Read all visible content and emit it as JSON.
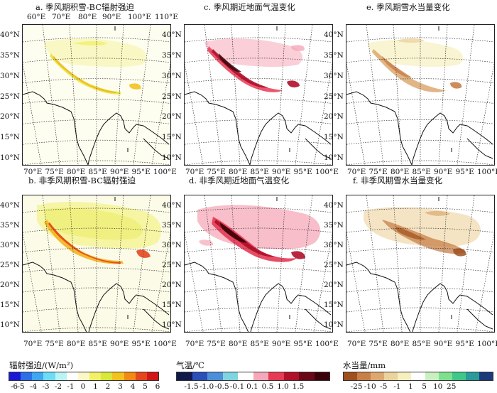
{
  "panels": [
    {
      "id": "a",
      "title": "a. 季风期积雪-BC辐射强迫",
      "type": "forcing",
      "season": "monsoon"
    },
    {
      "id": "b",
      "title": "b. 非季风期积雪-BC辐射强迫",
      "type": "forcing",
      "season": "non-monsoon"
    },
    {
      "id": "c",
      "title": "c. 季风期近地面气温变化",
      "type": "temperature",
      "season": "monsoon"
    },
    {
      "id": "d",
      "title": "d. 非季风期近地面气温变化",
      "type": "temperature",
      "season": "non-monsoon"
    },
    {
      "id": "e",
      "title": "e. 季风期雪水当量变化",
      "type": "swe",
      "season": "monsoon"
    },
    {
      "id": "f",
      "title": "f. 非季风期雪水当量变化",
      "type": "swe",
      "season": "non-monsoon"
    }
  ],
  "lat_labels": [
    "40°N",
    "35°N",
    "30°N",
    "25°N",
    "20°N",
    "15°N",
    "10°N"
  ],
  "lon_labels": [
    "70°E",
    "75°E",
    "80°E",
    "85°E",
    "90°E",
    "95°E",
    "100°E"
  ],
  "top_lon_labels": [
    "60°E",
    "70°E",
    "80°E",
    "90°E",
    "100°E",
    "110°E"
  ],
  "colorbars": [
    {
      "title": "辐射强迫/(W/m²)",
      "colors": [
        "#1a1ad6",
        "#2a6fe8",
        "#3fa6f2",
        "#6fdcf5",
        "#b9f3f2",
        "#ffffff",
        "#fbf8c8",
        "#f2f064",
        "#d9e63a",
        "#f2c21e",
        "#f28a14",
        "#e6461e",
        "#d11616"
      ],
      "ticks": [
        "-6",
        "-5",
        "-4",
        "-3",
        "-2",
        "-1",
        "0",
        "1",
        "2",
        "3",
        "4",
        "5",
        "6"
      ]
    },
    {
      "title": "气温/℃",
      "colors": [
        "#101a4a",
        "#2a4fb8",
        "#4c8fd8",
        "#7fd4e0",
        "#ffffff",
        "#f5a8b8",
        "#e63a55",
        "#b0102a",
        "#6a0816",
        "#3a0208"
      ],
      "ticks": [
        "-1.5",
        "-1.0",
        "-0.5",
        "-0.1",
        "0.1",
        "0.5",
        "1.0",
        "1.5"
      ]
    },
    {
      "title": "水当量/mm",
      "colors": [
        "#a0501e",
        "#c88048",
        "#dca870",
        "#ecd29c",
        "#f6efbe",
        "#ffffff",
        "#c8f0c0",
        "#7ee08e",
        "#3fc88a",
        "#2a9a9a",
        "#1a3a7a"
      ],
      "ticks": [
        "-25",
        "-10",
        "-5",
        "-1",
        "1",
        "5",
        "10",
        "25"
      ]
    }
  ],
  "colors": {
    "frame": "#222222",
    "coast": "#111111",
    "grid": "#333333"
  }
}
